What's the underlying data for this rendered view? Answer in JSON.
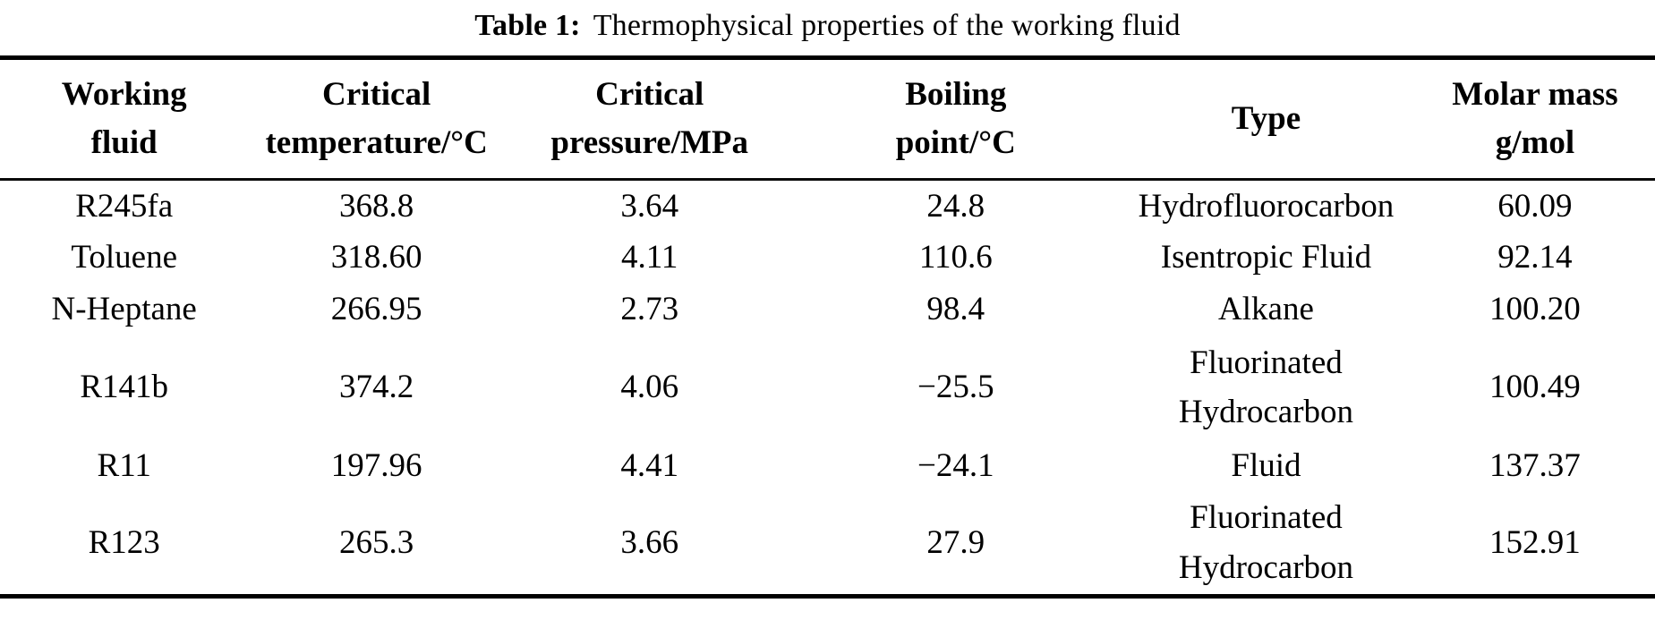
{
  "title": {
    "label": "Table 1:",
    "text": "Thermophysical properties of the working fluid"
  },
  "table": {
    "columns": [
      {
        "line1": "Working",
        "line2": "fluid"
      },
      {
        "line1": "Critical",
        "line2": "temperature/°C"
      },
      {
        "line1": "Critical",
        "line2": "pressure/MPa"
      },
      {
        "line1": "Boiling",
        "line2": "point/°C"
      },
      {
        "line1": "Type",
        "line2": ""
      },
      {
        "line1": "Molar mass",
        "line2": "g/mol"
      }
    ],
    "rows": [
      {
        "cells": [
          "R245fa",
          "368.8",
          "3.64",
          "24.8",
          "Hydrofluorocarbon",
          "60.09"
        ]
      },
      {
        "cells": [
          "Toluene",
          "318.60",
          "4.11",
          "110.6",
          "Isentropic Fluid",
          "92.14"
        ]
      },
      {
        "cells": [
          "N-Heptane",
          "266.95",
          "2.73",
          "98.4",
          "Alkane",
          "100.20"
        ]
      },
      {
        "cells": [
          "R141b",
          "374.2",
          "4.06",
          "−25.5",
          "Fluorinated Hydrocarbon",
          "100.49"
        ]
      },
      {
        "cells": [
          "R11",
          "197.96",
          "4.41",
          "−24.1",
          "Fluid",
          "137.37"
        ]
      },
      {
        "cells": [
          "R123",
          "265.3",
          "3.66",
          "27.9",
          "Fluorinated Hydrocarbon",
          "152.91"
        ]
      }
    ]
  },
  "colors": {
    "text": "#000000",
    "background": "#ffffff",
    "rule": "#000000"
  }
}
